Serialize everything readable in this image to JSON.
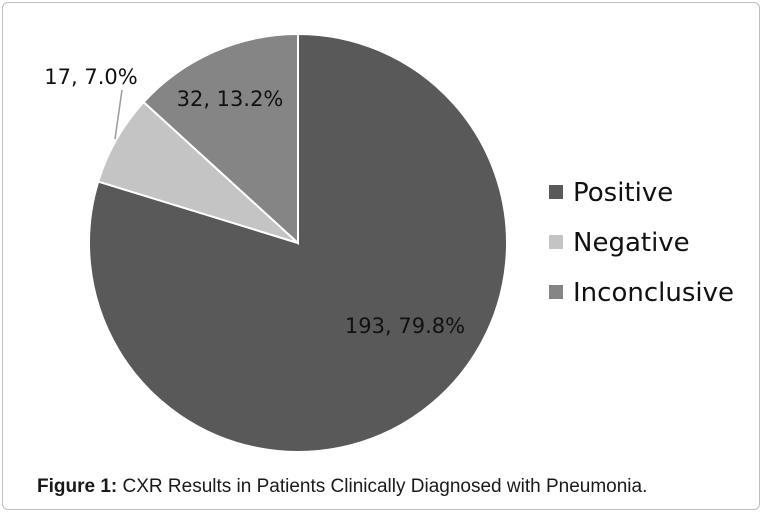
{
  "chart_data": {
    "type": "pie",
    "categories": [
      "Positive",
      "Negative",
      "Inconclusive"
    ],
    "values": [
      193,
      17,
      32
    ],
    "percents": [
      "79.8%",
      "7.0%",
      "13.2%"
    ],
    "data_labels": [
      "193, 79.8%",
      "17, 7.0%",
      "32, 13.2%"
    ],
    "colors": [
      "#595959",
      "#c4c4c4",
      "#858585"
    ],
    "legend": [
      "Positive",
      "Negative",
      "Inconclusive"
    ],
    "legend_position": "right",
    "start_angle": "12 o'clock, clockwise"
  },
  "caption": {
    "label": "Figure 1:",
    "text": " CXR Results in Patients Clinically Diagnosed with Pneumonia."
  }
}
